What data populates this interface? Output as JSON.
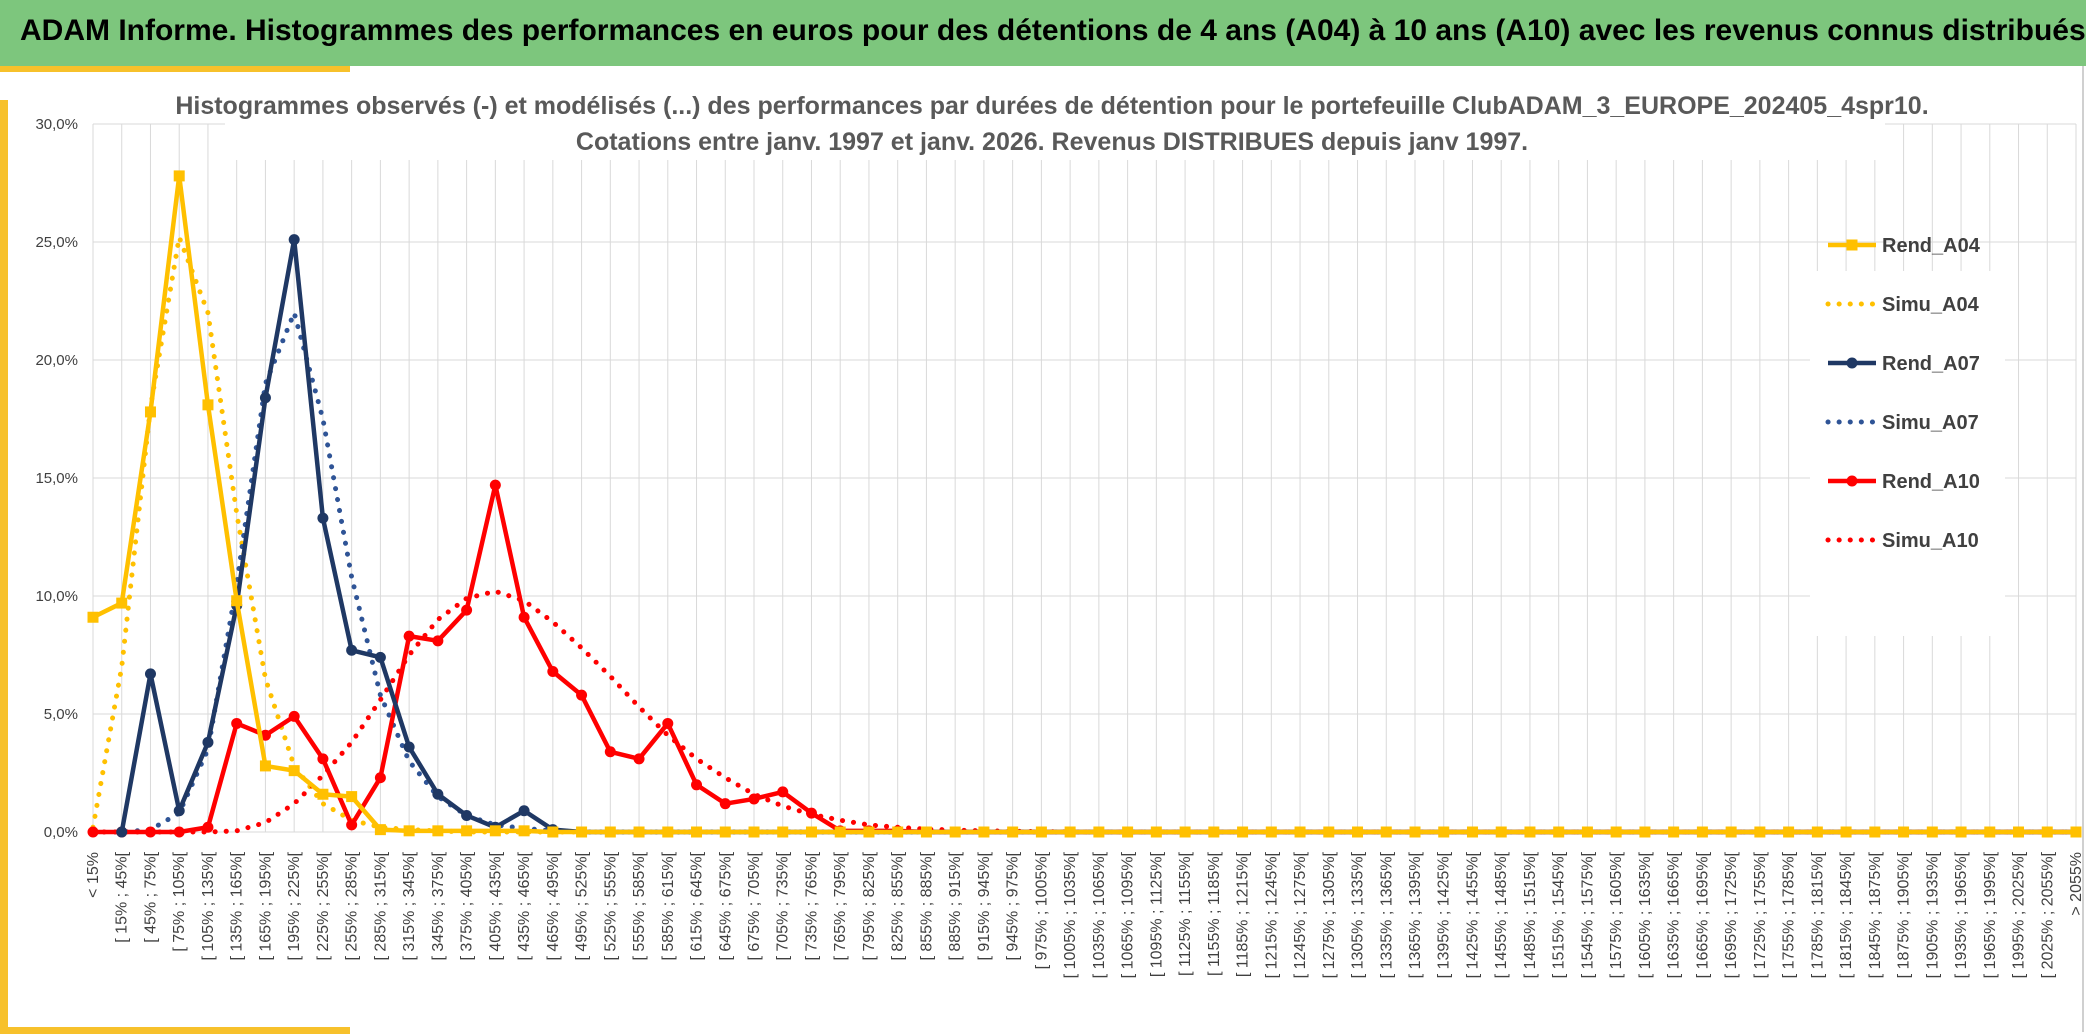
{
  "header": {
    "title": "ADAM Informe. Histogrammes des performances en euros pour des détentions de 4 ans (A04) à 10 ans (A10) avec les revenus connus distribués"
  },
  "colors": {
    "banner": "#7dc67d",
    "accent": "#f7c12b",
    "a04": "#ffc000",
    "a07": "#1f3864",
    "a07_simu": "#2f5496",
    "a10": "#ff0000",
    "grid": "#d9d9d9"
  },
  "chart_data": {
    "type": "line",
    "title_lines": [
      "Histogrammes observés (-) et modélisés (...) des performances par durées de détention pour le portefeuille ClubADAM_3_EUROPE_202405_4spr10.",
      "Cotations entre janv. 1997 et janv. 2026. Revenus DISTRIBUES depuis janv 1997."
    ],
    "ylim": [
      0,
      30
    ],
    "yticks": [
      0,
      5,
      10,
      15,
      20,
      25,
      30
    ],
    "ytick_labels": [
      "0,0%",
      "5,0%",
      "10,0%",
      "15,0%",
      "20,0%",
      "25,0%",
      "30,0%"
    ],
    "y_unit": "%",
    "grid": true,
    "legend_position": "right",
    "categories": [
      "< 15%",
      "[ 15% ; 45%[",
      "[ 45% ; 75%[",
      "[ 75% ; 105%[",
      "[ 105% ; 135%[",
      "[ 135% ; 165%[",
      "[ 165% ; 195%[",
      "[ 195% ; 225%[",
      "[ 225% ; 255%[",
      "[ 255% ; 285%[",
      "[ 285% ; 315%[",
      "[ 315% ; 345%[",
      "[ 345% ; 375%[",
      "[ 375% ; 405%[",
      "[ 405% ; 435%[",
      "[ 435% ; 465%[",
      "[ 465% ; 495%[",
      "[ 495% ; 525%[",
      "[ 525% ; 555%[",
      "[ 555% ; 585%[",
      "[ 585% ; 615%[",
      "[ 615% ; 645%[",
      "[ 645% ; 675%[",
      "[ 675% ; 705%[",
      "[ 705% ; 735%[",
      "[ 735% ; 765%[",
      "[ 765% ; 795%[",
      "[ 795% ; 825%[",
      "[ 825% ; 855%[",
      "[ 855% ; 885%[",
      "[ 885% ; 915%[",
      "[ 915% ; 945%[",
      "[ 945% ; 975%[",
      "[ 975% ; 1005%[",
      "[ 1005% ; 1035%[",
      "[ 1035% ; 1065%[",
      "[ 1065% ; 1095%[",
      "[ 1095% ; 1125%[",
      "[ 1125% ; 1155%[",
      "[ 1155% ; 1185%[",
      "[ 1185% ; 1215%[",
      "[ 1215% ; 1245%[",
      "[ 1245% ; 1275%[",
      "[ 1275% ; 1305%[",
      "[ 1305% ; 1335%[",
      "[ 1335% ; 1365%[",
      "[ 1365% ; 1395%[",
      "[ 1395% ; 1425%[",
      "[ 1425% ; 1455%[",
      "[ 1455% ; 1485%[",
      "[ 1485% ; 1515%[",
      "[ 1515% ; 1545%[",
      "[ 1545% ; 1575%[",
      "[ 1575% ; 1605%[",
      "[ 1605% ; 1635%[",
      "[ 1635% ; 1665%[",
      "[ 1665% ; 1695%[",
      "[ 1695% ; 1725%[",
      "[ 1725% ; 1755%[",
      "[ 1755% ; 1785%[",
      "[ 1785% ; 1815%[",
      "[ 1815% ; 1845%[",
      "[ 1845% ; 1875%[",
      "[ 1875% ; 1905%[",
      "[ 1905% ; 1935%[",
      "[ 1935% ; 1965%[",
      "[ 1965% ; 1995%[",
      "[ 1995% ; 2025%[",
      "[ 2025% ; 2055%[",
      "> 2055%"
    ],
    "series": [
      {
        "name": "Rend_A04",
        "style": "solid",
        "marker": "square",
        "color": "#ffc000",
        "values": [
          9.1,
          9.7,
          17.8,
          27.8,
          18.1,
          9.8,
          2.8,
          2.6,
          1.6,
          1.5,
          0.1,
          0.05,
          0.05,
          0.05,
          0.05,
          0.05,
          0,
          0,
          0,
          0,
          0,
          0,
          0,
          0,
          0,
          0,
          0,
          0,
          0,
          0,
          0,
          0,
          0,
          0,
          0,
          0,
          0,
          0,
          0,
          0,
          0,
          0,
          0,
          0,
          0,
          0,
          0,
          0,
          0,
          0,
          0,
          0,
          0,
          0,
          0,
          0,
          0,
          0,
          0,
          0,
          0,
          0,
          0,
          0,
          0,
          0,
          0,
          0,
          0,
          0
        ]
      },
      {
        "name": "Simu_A04",
        "style": "dotted",
        "marker": "none",
        "color": "#ffc000",
        "values": [
          0.2,
          7.0,
          18.0,
          25.2,
          22.0,
          13.5,
          6.5,
          2.8,
          1.2,
          0.5,
          0.2,
          0.1,
          0.05,
          0,
          0,
          0,
          0,
          0,
          0,
          0,
          0,
          0,
          0,
          0,
          0,
          0,
          0,
          0,
          0,
          0,
          0,
          0,
          0,
          0,
          0,
          0,
          0,
          0,
          0,
          0,
          0,
          0,
          0,
          0,
          0,
          0,
          0,
          0,
          0,
          0,
          0,
          0,
          0,
          0,
          0,
          0,
          0,
          0,
          0,
          0,
          0,
          0,
          0,
          0,
          0,
          0,
          0,
          0,
          0,
          0
        ]
      },
      {
        "name": "Rend_A07",
        "style": "solid",
        "marker": "circle",
        "color": "#1f3864",
        "values": [
          null,
          0,
          6.7,
          0.9,
          3.8,
          9.6,
          18.4,
          25.1,
          13.3,
          7.7,
          7.4,
          3.6,
          1.6,
          0.7,
          0.2,
          0.9,
          0.1,
          0,
          0,
          0,
          0,
          0,
          0,
          0,
          0,
          0,
          0,
          0,
          0,
          0,
          0,
          0,
          0,
          0,
          0,
          0,
          0,
          0,
          0,
          0,
          0,
          0,
          0,
          0,
          0,
          0,
          0,
          0,
          0,
          0,
          0,
          0,
          0,
          0,
          0,
          0,
          0,
          0,
          0,
          0,
          0,
          0,
          0,
          0,
          0,
          0,
          0,
          0,
          0,
          0
        ]
      },
      {
        "name": "Simu_A07",
        "style": "dotted",
        "marker": "none",
        "color": "#2f5496",
        "values": [
          0,
          0,
          0.1,
          0.8,
          3.5,
          10.5,
          19.0,
          22.0,
          17.5,
          10.8,
          5.8,
          3.0,
          1.5,
          0.7,
          0.3,
          0.15,
          0.05,
          0,
          0,
          0,
          0,
          0,
          0,
          0,
          0,
          0,
          0,
          0,
          0,
          0,
          0,
          0,
          0,
          0,
          0,
          0,
          0,
          0,
          0,
          0,
          0,
          0,
          0,
          0,
          0,
          0,
          0,
          0,
          0,
          0,
          0,
          0,
          0,
          0,
          0,
          0,
          0,
          0,
          0,
          0,
          0,
          0,
          0,
          0,
          0,
          0,
          0,
          0,
          0,
          0
        ]
      },
      {
        "name": "Rend_A10",
        "style": "solid",
        "marker": "circle",
        "color": "#ff0000",
        "values": [
          0,
          0,
          0,
          0,
          0.2,
          4.6,
          4.1,
          4.9,
          3.1,
          0.3,
          2.3,
          8.3,
          8.1,
          9.4,
          14.7,
          9.1,
          6.8,
          5.8,
          3.4,
          3.1,
          4.6,
          2.0,
          1.2,
          1.4,
          1.7,
          0.8,
          0.05,
          0.05,
          0.05,
          0,
          0,
          0,
          0,
          0,
          0,
          0,
          0,
          0,
          0,
          0,
          0,
          0,
          0,
          0,
          0,
          0,
          0,
          0,
          0,
          0,
          0,
          0,
          0,
          0,
          0,
          0,
          0,
          0,
          0,
          0,
          0,
          0,
          0,
          0,
          0,
          0,
          0,
          0,
          0,
          0
        ]
      },
      {
        "name": "Simu_A10",
        "style": "dotted",
        "marker": "none",
        "color": "#ff0000",
        "values": [
          0,
          0,
          0,
          0,
          0,
          0.05,
          0.4,
          1.2,
          2.4,
          3.8,
          5.6,
          7.5,
          9.0,
          9.9,
          10.2,
          9.8,
          8.9,
          7.8,
          6.6,
          5.3,
          4.1,
          3.1,
          2.3,
          1.6,
          1.1,
          0.75,
          0.5,
          0.3,
          0.2,
          0.12,
          0.08,
          0.05,
          0.03,
          0.02,
          0,
          0,
          0,
          0,
          0,
          0,
          0,
          0,
          0,
          0,
          0,
          0,
          0,
          0,
          0,
          0,
          0,
          0,
          0,
          0,
          0,
          0,
          0,
          0,
          0,
          0,
          0,
          0,
          0,
          0,
          0,
          0,
          0,
          0,
          0,
          0
        ]
      }
    ]
  }
}
